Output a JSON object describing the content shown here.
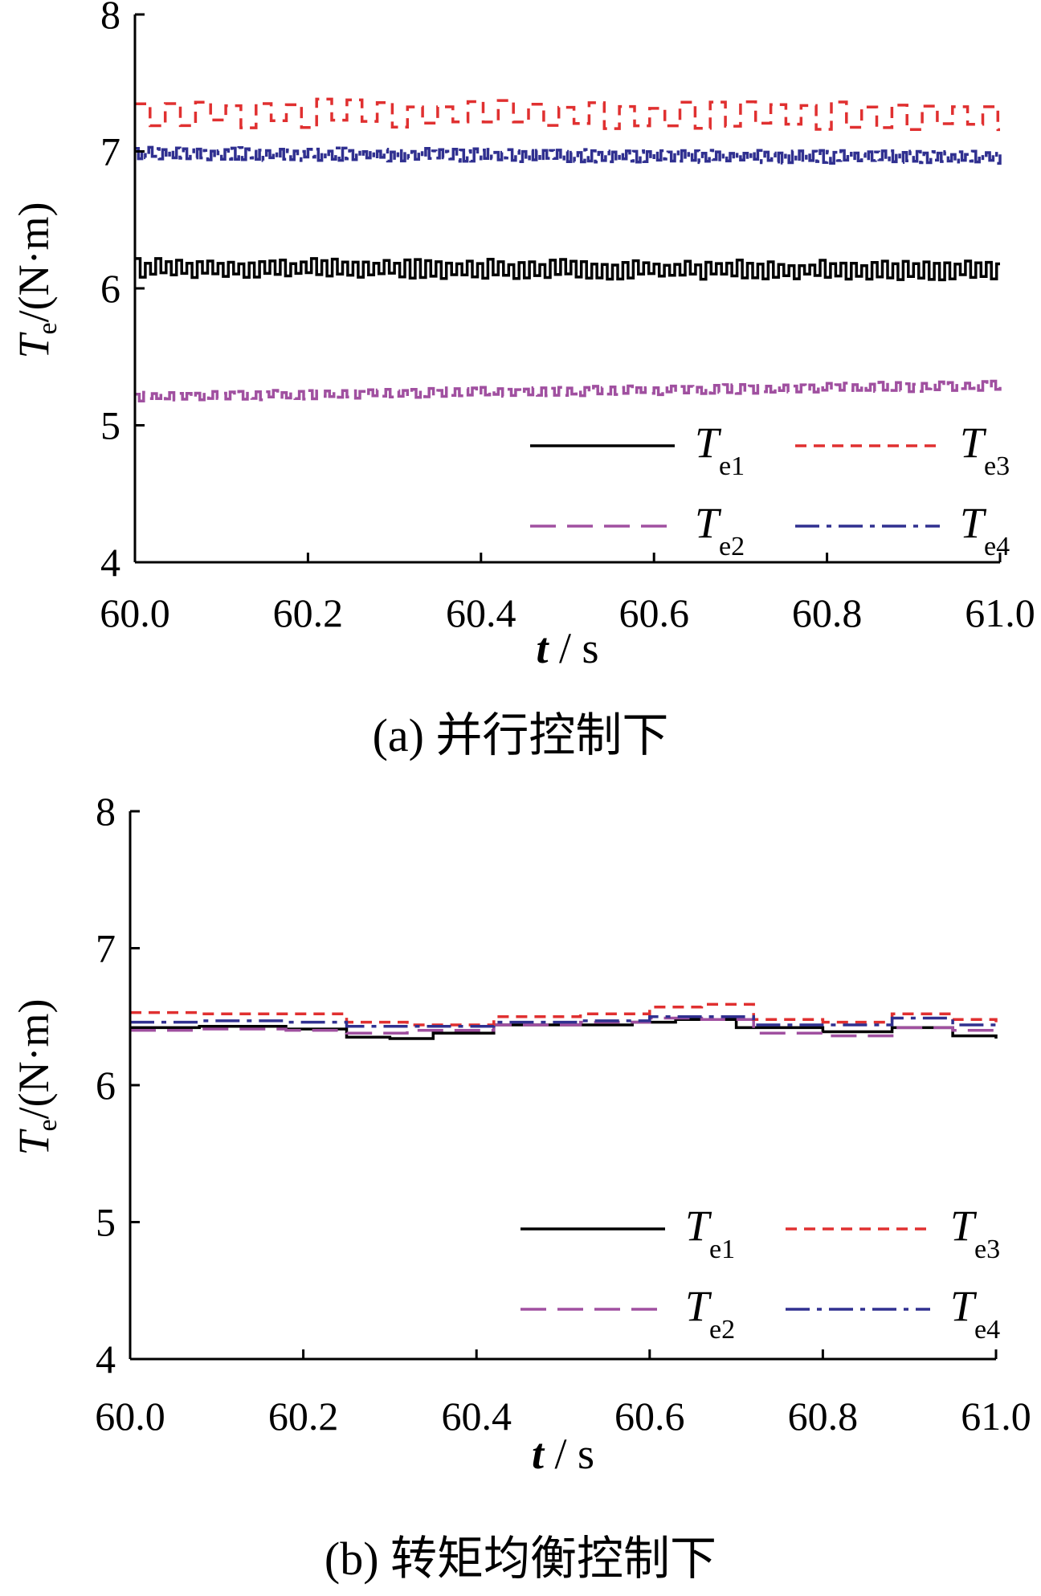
{
  "chart_data": [
    {
      "type": "line",
      "caption": "(a) 并行控制下",
      "xlabel_var": "t",
      "xlabel_unit": " / s",
      "ylabel_var": "T",
      "ylabel_sub": "e",
      "ylabel_unit": "/(N·m)",
      "xlim": [
        60.0,
        61.0
      ],
      "ylim": [
        4,
        8
      ],
      "xticks": [
        "60.0",
        "60.2",
        "60.4",
        "60.6",
        "60.8",
        "61.0"
      ],
      "yticks": [
        "4",
        "5",
        "6",
        "7",
        "8"
      ],
      "grid": false,
      "legend": "bottom-right",
      "series": [
        {
          "name": "T",
          "sub": "e1",
          "color": "#000000",
          "dash": "solid",
          "mean": 6.14,
          "amp": 0.06,
          "period": 0.012,
          "drift": -0.02
        },
        {
          "name": "T",
          "sub": "e2",
          "color": "#a050a0",
          "dash": "long-dash",
          "mean": 5.25,
          "amp": 0.03,
          "period": 0.01,
          "drift": 0.08
        },
        {
          "name": "T",
          "sub": "e3",
          "color": "#e03030",
          "dash": "short-dash",
          "mean": 7.27,
          "amp": 0.09,
          "period": 0.035,
          "drift": -0.02
        },
        {
          "name": "T",
          "sub": "e4",
          "color": "#303090",
          "dash": "dash-dot",
          "mean": 6.97,
          "amp": 0.04,
          "period": 0.008,
          "drift": -0.03
        }
      ]
    },
    {
      "type": "line",
      "caption": "(b) 转矩均衡控制下",
      "xlabel_var": "t",
      "xlabel_unit": " / s",
      "ylabel_var": "T",
      "ylabel_sub": "e",
      "ylabel_unit": "/(N·m)",
      "xlim": [
        60.0,
        61.0
      ],
      "ylim": [
        4,
        8
      ],
      "xticks": [
        "60.0",
        "60.2",
        "60.4",
        "60.6",
        "60.8",
        "61.0"
      ],
      "yticks": [
        "4",
        "5",
        "6",
        "7",
        "8"
      ],
      "grid": false,
      "legend": "bottom-right",
      "series": [
        {
          "name": "T",
          "sub": "e1",
          "color": "#000000",
          "dash": "solid",
          "points": [
            [
              60.0,
              6.42
            ],
            [
              60.08,
              6.43
            ],
            [
              60.18,
              6.41
            ],
            [
              60.25,
              6.35
            ],
            [
              60.3,
              6.34
            ],
            [
              60.35,
              6.38
            ],
            [
              60.42,
              6.44
            ],
            [
              60.5,
              6.44
            ],
            [
              60.58,
              6.46
            ],
            [
              60.63,
              6.48
            ],
            [
              60.7,
              6.42
            ],
            [
              60.8,
              6.39
            ],
            [
              60.88,
              6.42
            ],
            [
              60.95,
              6.36
            ],
            [
              61.0,
              6.34
            ]
          ]
        },
        {
          "name": "T",
          "sub": "e2",
          "color": "#a050a0",
          "dash": "long-dash",
          "points": [
            [
              60.0,
              6.4
            ],
            [
              60.08,
              6.41
            ],
            [
              60.18,
              6.4
            ],
            [
              60.25,
              6.38
            ],
            [
              60.32,
              6.4
            ],
            [
              60.42,
              6.44
            ],
            [
              60.52,
              6.46
            ],
            [
              60.6,
              6.49
            ],
            [
              60.66,
              6.48
            ],
            [
              60.72,
              6.38
            ],
            [
              60.8,
              6.36
            ],
            [
              60.88,
              6.42
            ],
            [
              60.95,
              6.4
            ],
            [
              61.0,
              6.38
            ]
          ]
        },
        {
          "name": "T",
          "sub": "e3",
          "color": "#e03030",
          "dash": "short-dash",
          "points": [
            [
              60.0,
              6.53
            ],
            [
              60.08,
              6.52
            ],
            [
              60.18,
              6.52
            ],
            [
              60.25,
              6.46
            ],
            [
              60.32,
              6.44
            ],
            [
              60.42,
              6.5
            ],
            [
              60.52,
              6.52
            ],
            [
              60.6,
              6.57
            ],
            [
              60.66,
              6.59
            ],
            [
              60.72,
              6.48
            ],
            [
              60.8,
              6.46
            ],
            [
              60.88,
              6.52
            ],
            [
              60.95,
              6.48
            ],
            [
              61.0,
              6.46
            ]
          ]
        },
        {
          "name": "T",
          "sub": "e4",
          "color": "#303090",
          "dash": "dash-dot",
          "points": [
            [
              60.0,
              6.46
            ],
            [
              60.08,
              6.47
            ],
            [
              60.18,
              6.46
            ],
            [
              60.25,
              6.43
            ],
            [
              60.32,
              6.43
            ],
            [
              60.42,
              6.46
            ],
            [
              60.52,
              6.47
            ],
            [
              60.6,
              6.5
            ],
            [
              60.66,
              6.5
            ],
            [
              60.72,
              6.44
            ],
            [
              60.8,
              6.44
            ],
            [
              60.88,
              6.49
            ],
            [
              60.95,
              6.44
            ],
            [
              61.0,
              6.42
            ]
          ]
        }
      ]
    }
  ]
}
